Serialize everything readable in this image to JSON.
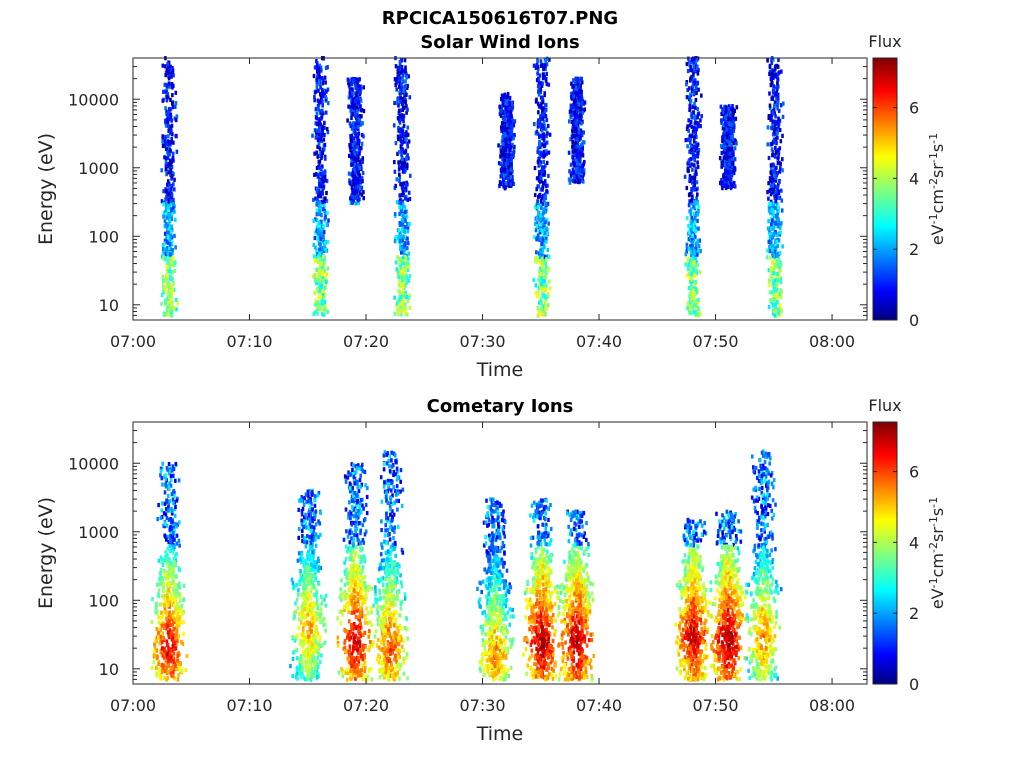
{
  "figure": {
    "title": "RPCICA150616T07.PNG"
  },
  "colors": {
    "axis": "#262626",
    "colormap": "jet"
  },
  "chart_data": [
    {
      "type": "heatmap",
      "title": "Solar Wind Ions",
      "xlabel": "Time",
      "ylabel": "Energy (eV)",
      "x_range": [
        "07:00",
        "08:03"
      ],
      "x_ticks": [
        "07:00",
        "07:10",
        "07:20",
        "07:30",
        "07:40",
        "07:50",
        "08:00"
      ],
      "y_scale": "log",
      "y_range": [
        6,
        40000
      ],
      "y_ticks": [
        "10",
        "100",
        "1000",
        "10000"
      ],
      "colorbar": {
        "label": "Flux",
        "unit": "eV-1cm-2sr-1s-1",
        "range": [
          0,
          7.4
        ],
        "ticks": [
          "0",
          "2",
          "4",
          "6"
        ]
      },
      "bursts": [
        {
          "t": "07:03",
          "eMin": 6,
          "eMax": 40000,
          "dominant_flux": "low, peak ~4.5 near 30 eV"
        },
        {
          "t": "07:16",
          "eMin": 6,
          "eMax": 40000,
          "dominant_flux": "low (~1)"
        },
        {
          "t": "07:19",
          "eMin": 300,
          "eMax": 20000,
          "dominant_flux": "low (~1)"
        },
        {
          "t": "07:23",
          "eMin": 6,
          "eMax": 40000,
          "dominant_flux": "low (~1)"
        },
        {
          "t": "07:32",
          "eMin": 500,
          "eMax": 12000,
          "dominant_flux": "low (~1-2)"
        },
        {
          "t": "07:35",
          "eMin": 6,
          "eMax": 40000,
          "dominant_flux": "low, peak ~4.5 near 30 eV"
        },
        {
          "t": "07:38",
          "eMin": 600,
          "eMax": 20000,
          "dominant_flux": "low (~2)"
        },
        {
          "t": "07:48",
          "eMin": 6,
          "eMax": 40000,
          "dominant_flux": "low, peak ~4.5 near 35 eV"
        },
        {
          "t": "07:51",
          "eMin": 500,
          "eMax": 8000,
          "dominant_flux": "low (~1-2)"
        },
        {
          "t": "07:55",
          "eMin": 6,
          "eMax": 40000,
          "dominant_flux": "low (~1)"
        }
      ]
    },
    {
      "type": "heatmap",
      "title": "Cometary Ions",
      "xlabel": "Time",
      "ylabel": "Energy (eV)",
      "x_range": [
        "07:00",
        "08:03"
      ],
      "x_ticks": [
        "07:00",
        "07:10",
        "07:20",
        "07:30",
        "07:40",
        "07:50",
        "08:00"
      ],
      "y_scale": "log",
      "y_range": [
        6,
        40000
      ],
      "y_ticks": [
        "10",
        "100",
        "1000",
        "10000"
      ],
      "colorbar": {
        "label": "Flux",
        "unit": "eV-1cm-2sr-1s-1",
        "range": [
          0,
          7.4
        ],
        "ticks": [
          "0",
          "2",
          "4",
          "6"
        ]
      },
      "bursts": [
        {
          "t": "07:03",
          "peak_flux": 6.8,
          "peak_energy": 20,
          "eMax": 10000
        },
        {
          "t": "07:15",
          "peak_flux": 5.5,
          "peak_energy": 40,
          "eMax": 4000
        },
        {
          "t": "07:19",
          "peak_flux": 7.0,
          "peak_energy": 25,
          "eMax": 10000
        },
        {
          "t": "07:22",
          "peak_flux": 6.2,
          "peak_energy": 20,
          "eMax": 15000
        },
        {
          "t": "07:31",
          "peak_flux": 5.8,
          "peak_energy": 15,
          "eMax": 3000
        },
        {
          "t": "07:35",
          "peak_flux": 7.2,
          "peak_energy": 25,
          "eMax": 3000
        },
        {
          "t": "07:38",
          "peak_flux": 7.2,
          "peak_energy": 25,
          "eMax": 2000
        },
        {
          "t": "07:48",
          "peak_flux": 7.0,
          "peak_energy": 30,
          "eMax": 1500
        },
        {
          "t": "07:51",
          "peak_flux": 7.3,
          "peak_energy": 25,
          "eMax": 2000
        },
        {
          "t": "07:54",
          "peak_flux": 5.8,
          "peak_energy": 30,
          "eMax": 15000
        }
      ]
    }
  ]
}
